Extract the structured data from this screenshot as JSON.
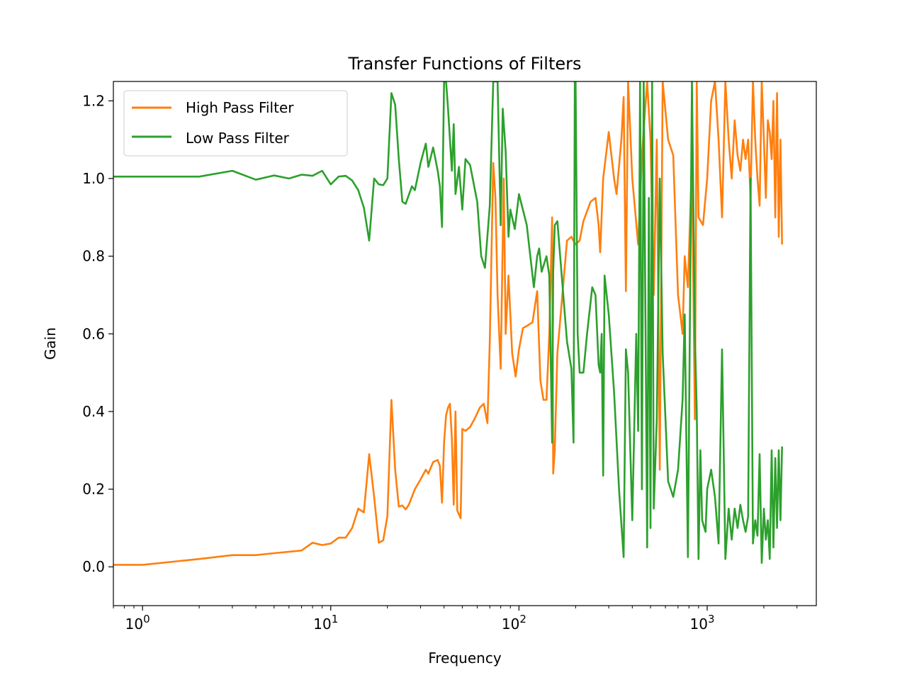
{
  "chart_data": {
    "type": "line",
    "title": "Transfer Functions of Filters",
    "xlabel": "Frequency",
    "ylabel": "Gain",
    "xscale": "log",
    "xlim": [
      0.7,
      3800
    ],
    "ylim": [
      -0.1,
      1.25
    ],
    "x_major_ticks": [
      {
        "value": 1,
        "base": "10",
        "exp": "0"
      },
      {
        "value": 10,
        "base": "10",
        "exp": "1"
      },
      {
        "value": 100,
        "base": "10",
        "exp": "2"
      },
      {
        "value": 1000,
        "base": "10",
        "exp": "3"
      }
    ],
    "y_ticks": [
      {
        "value": 0.0,
        "label": "0.0"
      },
      {
        "value": 0.2,
        "label": "0.2"
      },
      {
        "value": 0.4,
        "label": "0.4"
      },
      {
        "value": 0.6,
        "label": "0.6"
      },
      {
        "value": 0.8,
        "label": "0.8"
      },
      {
        "value": 1.0,
        "label": "1.0"
      },
      {
        "value": 1.2,
        "label": "1.2"
      }
    ],
    "grid": false,
    "legend_position": "top-left",
    "series": [
      {
        "name": "High Pass Filter",
        "color": "#ff7f0e",
        "points": [
          [
            0.7,
            0.005
          ],
          [
            1,
            0.005
          ],
          [
            2,
            0.02
          ],
          [
            3,
            0.03
          ],
          [
            4,
            0.03
          ],
          [
            5,
            0.035
          ],
          [
            7,
            0.042
          ],
          [
            8,
            0.062
          ],
          [
            9,
            0.056
          ],
          [
            10,
            0.06
          ],
          [
            11,
            0.075
          ],
          [
            12,
            0.075
          ],
          [
            13,
            0.1
          ],
          [
            14,
            0.15
          ],
          [
            15,
            0.14
          ],
          [
            16,
            0.29
          ],
          [
            17,
            0.18
          ],
          [
            18,
            0.062
          ],
          [
            19,
            0.068
          ],
          [
            20,
            0.13
          ],
          [
            21,
            0.43
          ],
          [
            22,
            0.25
          ],
          [
            23,
            0.155
          ],
          [
            24,
            0.158
          ],
          [
            25,
            0.148
          ],
          [
            26,
            0.16
          ],
          [
            28,
            0.2
          ],
          [
            30,
            0.225
          ],
          [
            32,
            0.25
          ],
          [
            33,
            0.24
          ],
          [
            35,
            0.27
          ],
          [
            37,
            0.275
          ],
          [
            38,
            0.26
          ],
          [
            39,
            0.165
          ],
          [
            40,
            0.32
          ],
          [
            41,
            0.39
          ],
          [
            42,
            0.41
          ],
          [
            43,
            0.42
          ],
          [
            44,
            0.33
          ],
          [
            45,
            0.16
          ],
          [
            46,
            0.4
          ],
          [
            47,
            0.145
          ],
          [
            49,
            0.125
          ],
          [
            50,
            0.355
          ],
          [
            52,
            0.35
          ],
          [
            55,
            0.36
          ],
          [
            58,
            0.38
          ],
          [
            62,
            0.41
          ],
          [
            65,
            0.42
          ],
          [
            68,
            0.37
          ],
          [
            70,
            0.58
          ],
          [
            73,
            1.04
          ],
          [
            75,
            0.95
          ],
          [
            77,
            0.7
          ],
          [
            80,
            0.51
          ],
          [
            83,
            1.0
          ],
          [
            85,
            0.6
          ],
          [
            88,
            0.75
          ],
          [
            92,
            0.55
          ],
          [
            96,
            0.49
          ],
          [
            100,
            0.56
          ],
          [
            105,
            0.615
          ],
          [
            110,
            0.62
          ],
          [
            118,
            0.63
          ],
          [
            125,
            0.71
          ],
          [
            130,
            0.48
          ],
          [
            135,
            0.43
          ],
          [
            140,
            0.43
          ],
          [
            145,
            0.6
          ],
          [
            150,
            0.9
          ],
          [
            152,
            0.24
          ],
          [
            155,
            0.3
          ],
          [
            160,
            0.55
          ],
          [
            170,
            0.7
          ],
          [
            180,
            0.84
          ],
          [
            190,
            0.85
          ],
          [
            200,
            0.83
          ],
          [
            210,
            0.84
          ],
          [
            220,
            0.89
          ],
          [
            240,
            0.94
          ],
          [
            255,
            0.95
          ],
          [
            265,
            0.88
          ],
          [
            270,
            0.81
          ],
          [
            280,
            1.0
          ],
          [
            290,
            1.06
          ],
          [
            300,
            1.12
          ],
          [
            320,
            1.0
          ],
          [
            330,
            0.96
          ],
          [
            350,
            1.1
          ],
          [
            360,
            1.21
          ],
          [
            370,
            0.71
          ],
          [
            380,
            1.25
          ],
          [
            400,
            1.0
          ],
          [
            430,
            0.83
          ],
          [
            450,
            1.06
          ],
          [
            480,
            1.25
          ],
          [
            500,
            1.1
          ],
          [
            520,
            0.7
          ],
          [
            540,
            1.1
          ],
          [
            560,
            0.25
          ],
          [
            580,
            1.25
          ],
          [
            620,
            1.1
          ],
          [
            660,
            1.06
          ],
          [
            700,
            0.7
          ],
          [
            740,
            0.6
          ],
          [
            760,
            0.8
          ],
          [
            790,
            0.72
          ],
          [
            830,
            1.05
          ],
          [
            860,
            0.38
          ],
          [
            880,
            1.25
          ],
          [
            900,
            0.9
          ],
          [
            950,
            0.88
          ],
          [
            1000,
            1.0
          ],
          [
            1050,
            1.2
          ],
          [
            1100,
            1.25
          ],
          [
            1150,
            1.1
          ],
          [
            1200,
            0.9
          ],
          [
            1250,
            1.25
          ],
          [
            1300,
            1.1
          ],
          [
            1350,
            1.0
          ],
          [
            1400,
            1.15
          ],
          [
            1450,
            1.06
          ],
          [
            1500,
            1.02
          ],
          [
            1550,
            1.1
          ],
          [
            1600,
            1.05
          ],
          [
            1650,
            1.1
          ],
          [
            1700,
            0.95
          ],
          [
            1750,
            1.25
          ],
          [
            1800,
            1.1
          ],
          [
            1850,
            1.0
          ],
          [
            1900,
            0.93
          ],
          [
            1950,
            1.25
          ],
          [
            2000,
            1.1
          ],
          [
            2050,
            0.95
          ],
          [
            2100,
            1.15
          ],
          [
            2150,
            1.12
          ],
          [
            2200,
            1.05
          ],
          [
            2250,
            1.2
          ],
          [
            2300,
            0.9
          ],
          [
            2350,
            1.22
          ],
          [
            2400,
            0.85
          ],
          [
            2450,
            1.1
          ],
          [
            2500,
            0.83
          ]
        ]
      },
      {
        "name": "Low Pass Filter",
        "color": "#2ca02c",
        "points": [
          [
            0.7,
            1.005
          ],
          [
            1,
            1.005
          ],
          [
            2,
            1.005
          ],
          [
            3,
            1.02
          ],
          [
            4,
            0.997
          ],
          [
            5,
            1.008
          ],
          [
            6,
            1.0
          ],
          [
            7,
            1.01
          ],
          [
            8,
            1.007
          ],
          [
            9,
            1.02
          ],
          [
            10,
            0.985
          ],
          [
            11,
            1.005
          ],
          [
            12,
            1.007
          ],
          [
            13,
            0.995
          ],
          [
            14,
            0.97
          ],
          [
            15,
            0.925
          ],
          [
            16,
            0.84
          ],
          [
            17,
            1.0
          ],
          [
            18,
            0.985
          ],
          [
            19,
            0.983
          ],
          [
            20,
            1.0
          ],
          [
            21,
            1.22
          ],
          [
            22,
            1.19
          ],
          [
            23,
            1.05
          ],
          [
            24,
            0.94
          ],
          [
            25,
            0.935
          ],
          [
            27,
            0.98
          ],
          [
            28,
            0.97
          ],
          [
            30,
            1.04
          ],
          [
            32,
            1.09
          ],
          [
            33,
            1.03
          ],
          [
            35,
            1.08
          ],
          [
            37,
            1.02
          ],
          [
            38,
            0.98
          ],
          [
            39,
            0.875
          ],
          [
            40,
            1.25
          ],
          [
            41,
            1.25
          ],
          [
            42,
            1.18
          ],
          [
            43,
            1.1
          ],
          [
            44,
            1.02
          ],
          [
            45,
            1.14
          ],
          [
            46,
            0.96
          ],
          [
            48,
            1.03
          ],
          [
            50,
            0.92
          ],
          [
            52,
            1.05
          ],
          [
            55,
            1.035
          ],
          [
            60,
            0.94
          ],
          [
            63,
            0.8
          ],
          [
            66,
            0.77
          ],
          [
            70,
            0.93
          ],
          [
            73,
            1.25
          ],
          [
            77,
            1.25
          ],
          [
            80,
            0.88
          ],
          [
            82,
            1.18
          ],
          [
            85,
            1.07
          ],
          [
            88,
            0.85
          ],
          [
            90,
            0.92
          ],
          [
            95,
            0.87
          ],
          [
            100,
            0.96
          ],
          [
            110,
            0.88
          ],
          [
            120,
            0.72
          ],
          [
            125,
            0.8
          ],
          [
            128,
            0.82
          ],
          [
            132,
            0.76
          ],
          [
            140,
            0.8
          ],
          [
            145,
            0.75
          ],
          [
            150,
            0.32
          ],
          [
            152,
            0.76
          ],
          [
            155,
            0.88
          ],
          [
            160,
            0.89
          ],
          [
            170,
            0.73
          ],
          [
            180,
            0.58
          ],
          [
            190,
            0.51
          ],
          [
            195,
            0.32
          ],
          [
            198,
            1.25
          ],
          [
            200,
            1.25
          ],
          [
            205,
            0.6
          ],
          [
            210,
            0.5
          ],
          [
            220,
            0.5
          ],
          [
            230,
            0.6
          ],
          [
            245,
            0.72
          ],
          [
            255,
            0.7
          ],
          [
            265,
            0.52
          ],
          [
            270,
            0.5
          ],
          [
            275,
            0.6
          ],
          [
            280,
            0.235
          ],
          [
            285,
            0.75
          ],
          [
            300,
            0.65
          ],
          [
            320,
            0.45
          ],
          [
            340,
            0.2
          ],
          [
            360,
            0.025
          ],
          [
            370,
            0.56
          ],
          [
            380,
            0.5
          ],
          [
            400,
            0.12
          ],
          [
            420,
            0.6
          ],
          [
            430,
            0.35
          ],
          [
            440,
            1.25
          ],
          [
            450,
            0.2
          ],
          [
            460,
            1.25
          ],
          [
            480,
            0.05
          ],
          [
            490,
            0.95
          ],
          [
            500,
            0.1
          ],
          [
            510,
            1.25
          ],
          [
            520,
            0.15
          ],
          [
            540,
            0.38
          ],
          [
            560,
            1.0
          ],
          [
            580,
            0.55
          ],
          [
            620,
            0.22
          ],
          [
            660,
            0.18
          ],
          [
            700,
            0.25
          ],
          [
            740,
            0.43
          ],
          [
            760,
            0.65
          ],
          [
            790,
            0.025
          ],
          [
            830,
            1.25
          ],
          [
            860,
            0.6
          ],
          [
            880,
            0.4
          ],
          [
            900,
            0.02
          ],
          [
            920,
            0.3
          ],
          [
            940,
            0.12
          ],
          [
            980,
            0.09
          ],
          [
            1000,
            0.2
          ],
          [
            1050,
            0.25
          ],
          [
            1100,
            0.18
          ],
          [
            1150,
            0.06
          ],
          [
            1200,
            0.56
          ],
          [
            1250,
            0.02
          ],
          [
            1300,
            0.15
          ],
          [
            1350,
            0.07
          ],
          [
            1400,
            0.15
          ],
          [
            1450,
            0.1
          ],
          [
            1500,
            0.16
          ],
          [
            1550,
            0.12
          ],
          [
            1600,
            0.09
          ],
          [
            1650,
            0.13
          ],
          [
            1700,
            1.0
          ],
          [
            1750,
            0.06
          ],
          [
            1800,
            0.12
          ],
          [
            1850,
            0.08
          ],
          [
            1900,
            0.29
          ],
          [
            1950,
            0.01
          ],
          [
            2000,
            0.15
          ],
          [
            2050,
            0.07
          ],
          [
            2100,
            0.12
          ],
          [
            2150,
            0.02
          ],
          [
            2200,
            0.3
          ],
          [
            2250,
            0.05
          ],
          [
            2300,
            0.28
          ],
          [
            2350,
            0.1
          ],
          [
            2400,
            0.3
          ],
          [
            2450,
            0.12
          ],
          [
            2500,
            0.31
          ]
        ]
      }
    ]
  }
}
